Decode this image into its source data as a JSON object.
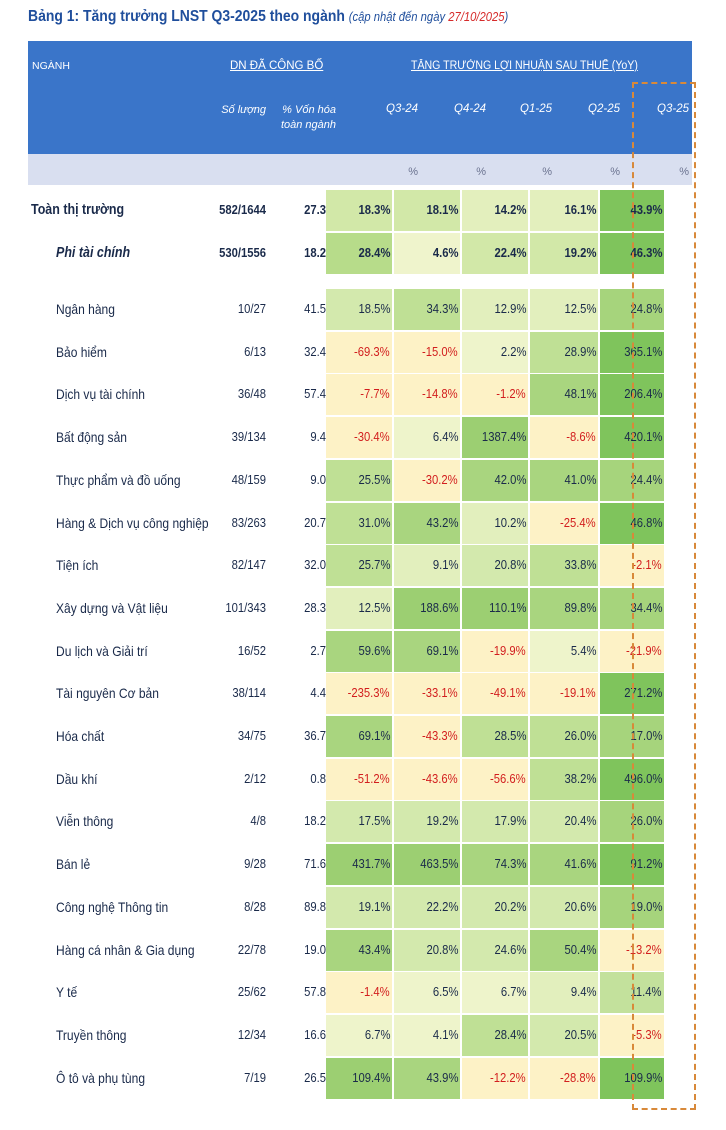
{
  "title": {
    "main": "Bảng 1: Tăng trưởng LNST Q3-2025 theo ngành",
    "sub": "(cập nhật đến ngày ",
    "date": "27/10/2025",
    "close": ")"
  },
  "header": {
    "sector": "NGÀNH",
    "announced": "DN ĐÃ CÔNG BỐ",
    "growth": "TĂNG TRƯỞNG LỢI NHUẬN SAU THUẾ (YoY)",
    "count": "Số lượng",
    "cap_line1": "% Vốn hóa",
    "cap_line2": "toàn ngành",
    "quarters": [
      "Q3-24",
      "Q4-24",
      "Q1-25",
      "Q2-25",
      "Q3-25"
    ],
    "unit": "%"
  },
  "colors": {
    "header_bg": "#3a75c9",
    "subheader_bg": "#d9dff0",
    "negative_text": "#d21e1e",
    "highlight_border": "#d8893a"
  },
  "rows": [
    {
      "name": "Toàn thị trường",
      "count": "582/1644",
      "cap": "27.3%",
      "values": [
        "18.3%",
        "18.1%",
        "14.2%",
        "16.1%",
        "43.9%"
      ]
    },
    {
      "name": "Phi tài chính",
      "count": "530/1556",
      "cap": "18.2%",
      "values": [
        "28.4%",
        "4.6%",
        "22.4%",
        "19.2%",
        "46.3%"
      ]
    },
    {
      "name": "Ngân hàng",
      "count": "10/27",
      "cap": "41.5%",
      "values": [
        "18.5%",
        "34.3%",
        "12.9%",
        "12.5%",
        "24.8%"
      ]
    },
    {
      "name": "Bảo hiểm",
      "count": "6/13",
      "cap": "32.4%",
      "values": [
        "-69.3%",
        "-15.0%",
        "2.2%",
        "28.9%",
        "365.1%"
      ]
    },
    {
      "name": "Dịch vụ tài chính",
      "count": "36/48",
      "cap": "57.4%",
      "values": [
        "-7.7%",
        "-14.8%",
        "-1.2%",
        "48.1%",
        "206.4%"
      ]
    },
    {
      "name": "Bất động sản",
      "count": "39/134",
      "cap": "9.4%",
      "values": [
        "-30.4%",
        "6.4%",
        "1387.4%",
        "-8.6%",
        "420.1%"
      ]
    },
    {
      "name": "Thực phẩm và đồ uống",
      "count": "48/159",
      "cap": "9.0%",
      "values": [
        "25.5%",
        "-30.2%",
        "42.0%",
        "41.0%",
        "24.4%"
      ]
    },
    {
      "name": "Hàng & Dịch vụ công nghiệp",
      "count": "83/263",
      "cap": "20.7%",
      "values": [
        "31.0%",
        "43.2%",
        "10.2%",
        "-25.4%",
        "46.8%"
      ]
    },
    {
      "name": "Tiện ích",
      "count": "82/147",
      "cap": "32.0%",
      "values": [
        "25.7%",
        "9.1%",
        "20.8%",
        "33.8%",
        "-2.1%"
      ]
    },
    {
      "name": "Xây dựng và Vật liệu",
      "count": "101/343",
      "cap": "28.3%",
      "values": [
        "12.5%",
        "188.6%",
        "110.1%",
        "89.8%",
        "34.4%"
      ]
    },
    {
      "name": "Du lịch và Giải trí",
      "count": "16/52",
      "cap": "2.7%",
      "values": [
        "59.6%",
        "69.1%",
        "-19.9%",
        "5.4%",
        "-21.9%"
      ]
    },
    {
      "name": "Tài nguyên Cơ bản",
      "count": "38/114",
      "cap": "4.4%",
      "values": [
        "-235.3%",
        "-33.1%",
        "-49.1%",
        "-19.1%",
        "271.2%"
      ]
    },
    {
      "name": "Hóa chất",
      "count": "34/75",
      "cap": "36.7%",
      "values": [
        "69.1%",
        "-43.3%",
        "28.5%",
        "26.0%",
        "17.0%"
      ]
    },
    {
      "name": "Dầu khí",
      "count": "2/12",
      "cap": "0.8%",
      "values": [
        "-51.2%",
        "-43.6%",
        "-56.6%",
        "38.2%",
        "496.0%"
      ]
    },
    {
      "name": "Viễn thông",
      "count": "4/8",
      "cap": "18.2%",
      "values": [
        "17.5%",
        "19.2%",
        "17.9%",
        "20.4%",
        "26.0%"
      ]
    },
    {
      "name": "Bán lẻ",
      "count": "9/28",
      "cap": "71.6%",
      "values": [
        "431.7%",
        "463.5%",
        "74.3%",
        "41.6%",
        "91.2%"
      ]
    },
    {
      "name": "Công nghệ Thông tin",
      "count": "8/28",
      "cap": "89.8%",
      "values": [
        "19.1%",
        "22.2%",
        "20.2%",
        "20.6%",
        "19.0%"
      ]
    },
    {
      "name": "Hàng cá nhân & Gia dụng",
      "count": "22/78",
      "cap": "19.0%",
      "values": [
        "43.4%",
        "20.8%",
        "24.6%",
        "50.4%",
        "-13.2%"
      ]
    },
    {
      "name": "Y tế",
      "count": "25/62",
      "cap": "57.8%",
      "values": [
        "-1.4%",
        "6.5%",
        "6.7%",
        "9.4%",
        "11.4%"
      ]
    },
    {
      "name": "Truyền thông",
      "count": "12/34",
      "cap": "16.6%",
      "values": [
        "6.7%",
        "4.1%",
        "28.4%",
        "20.5%",
        "-5.3%"
      ]
    },
    {
      "name": "Ô tô và phụ tùng",
      "count": "7/19",
      "cap": "26.5%",
      "values": [
        "109.4%",
        "43.9%",
        "-12.2%",
        "-28.8%",
        "109.9%"
      ]
    }
  ]
}
